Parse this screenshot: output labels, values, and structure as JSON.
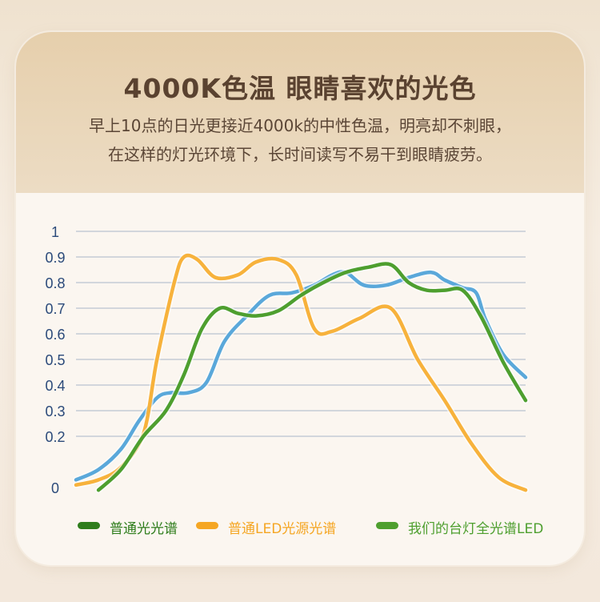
{
  "header": {
    "title": "4000K色温 眼睛喜欢的光色",
    "subtitle_line1": "早上10点的日光更接近4000k的中性色温，明亮却不刺眼，",
    "subtitle_line2": "在这样的灯光环境下，长时间读写不易干到眼睛疲劳。"
  },
  "colors": {
    "daylight": "#5aa8da",
    "normal_led": "#f7b23c",
    "our_led": "#4e9f2f",
    "grid": "#a9b7c8",
    "tick_label": "#2b4a7a"
  },
  "chart_data": {
    "type": "line",
    "title": "",
    "xlabel": "",
    "ylabel": "",
    "ylim": [
      0,
      1
    ],
    "xlim": [
      0,
      100
    ],
    "yticks": [
      "1",
      "0.9",
      "0.8",
      "0.7",
      "0.6",
      "0.5",
      "0.4",
      "0.3",
      "0.2",
      "0"
    ],
    "grid": true,
    "legend_position": "bottom",
    "series": [
      {
        "name": "普通光光谱",
        "x": [
          0,
          5,
          10,
          14,
          18,
          21,
          25,
          29,
          33,
          38,
          43,
          48,
          53,
          57,
          60,
          64,
          69,
          74,
          79,
          82,
          86,
          89,
          91,
          95,
          100
        ],
        "y": [
          0.03,
          0.07,
          0.15,
          0.26,
          0.35,
          0.37,
          0.37,
          0.41,
          0.57,
          0.67,
          0.75,
          0.76,
          0.79,
          0.83,
          0.84,
          0.79,
          0.79,
          0.82,
          0.84,
          0.81,
          0.78,
          0.76,
          0.66,
          0.52,
          0.43
        ]
      },
      {
        "name": "普通LED光源光谱",
        "x": [
          0,
          5,
          10,
          15,
          18,
          22,
          24,
          27,
          31,
          36,
          40,
          45,
          49,
          53,
          57,
          63,
          70,
          76,
          82,
          88,
          94,
          100
        ],
        "y": [
          0.01,
          0.03,
          0.08,
          0.21,
          0.5,
          0.81,
          0.9,
          0.89,
          0.82,
          0.83,
          0.88,
          0.89,
          0.83,
          0.62,
          0.61,
          0.66,
          0.7,
          0.5,
          0.34,
          0.17,
          0.04,
          -0.01
        ]
      },
      {
        "name": "我们的台灯全光谱LED",
        "x": [
          5,
          10,
          15,
          20,
          24,
          28,
          32,
          36,
          40,
          45,
          50,
          55,
          60,
          65,
          70,
          74,
          78,
          82,
          86,
          90,
          95,
          100
        ],
        "y": [
          -0.01,
          0.07,
          0.2,
          0.3,
          0.44,
          0.62,
          0.7,
          0.68,
          0.67,
          0.69,
          0.75,
          0.8,
          0.84,
          0.86,
          0.87,
          0.8,
          0.77,
          0.77,
          0.77,
          0.67,
          0.49,
          0.34
        ]
      }
    ]
  },
  "legend": [
    {
      "label": "普通光光谱",
      "color": "#2f7d1c"
    },
    {
      "label": "普通LED光源光谱",
      "color": "#f5a623"
    },
    {
      "label": "我们的台灯全光谱LED",
      "color": "#4e9f2f"
    }
  ]
}
